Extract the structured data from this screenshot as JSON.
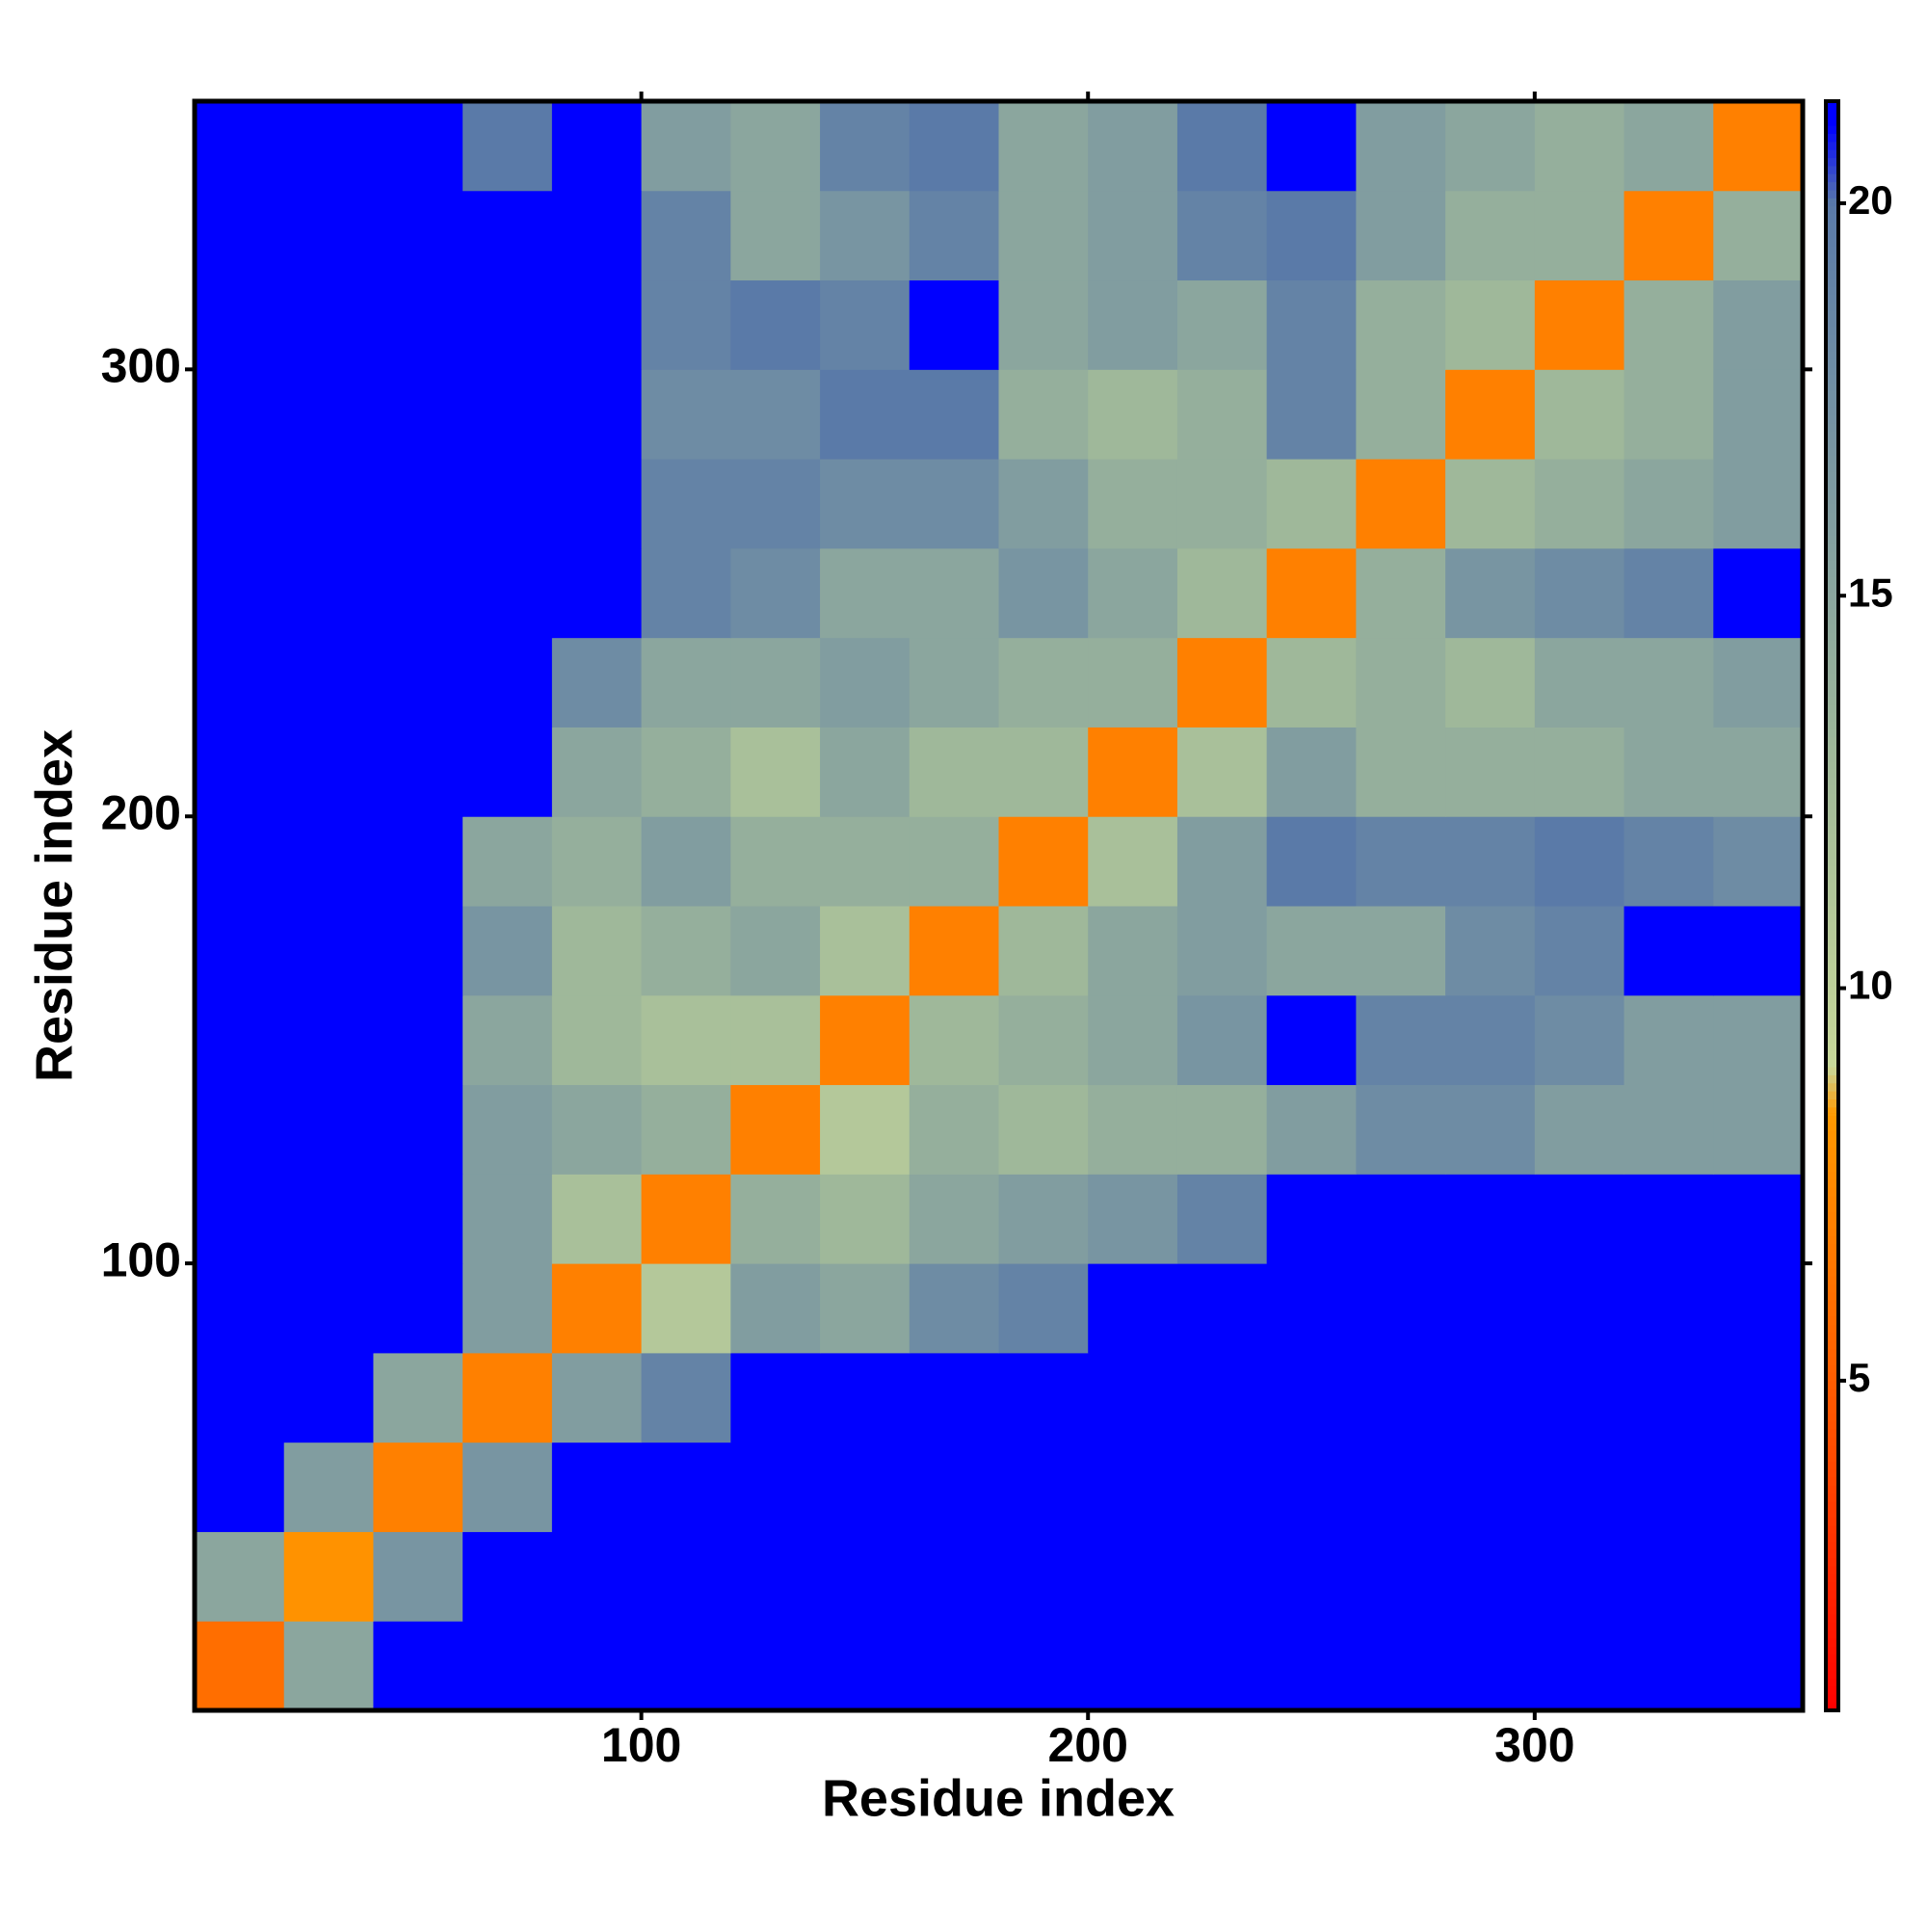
{
  "chart_data": {
    "type": "heatmap",
    "x_label": "Residue index",
    "y_label": "Residue index",
    "xbins": [
      0,
      20,
      40,
      60,
      80,
      100,
      120,
      140,
      160,
      180,
      200,
      220,
      240,
      260,
      280,
      300,
      320,
      340,
      360
    ],
    "ybins": [
      0,
      20,
      40,
      60,
      80,
      100,
      120,
      140,
      160,
      180,
      200,
      220,
      240,
      260,
      280,
      300,
      320,
      340,
      360
    ],
    "xlim": [
      0,
      360
    ],
    "ylim": [
      0,
      360
    ],
    "xticks": [
      100,
      200,
      300
    ],
    "yticks": [
      100,
      200,
      300
    ],
    "zlim": [
      0.8,
      21.3
    ],
    "zticks": [
      5,
      10,
      15,
      20
    ],
    "colorscale": [
      [
        0.8,
        "#ff0000"
      ],
      [
        4,
        "#ff4a00"
      ],
      [
        8.4,
        "#ff9900"
      ],
      [
        9,
        "#c8d89a"
      ],
      [
        13,
        "#9fb89a"
      ],
      [
        20,
        "#5a7aa8"
      ],
      [
        21,
        "#0000ff"
      ]
    ],
    "z": [
      [
        6,
        15,
        21,
        21,
        21,
        21,
        21,
        21,
        21,
        21,
        21,
        21,
        21,
        21,
        21,
        21,
        21,
        21
      ],
      [
        15,
        8,
        17,
        21,
        21,
        21,
        21,
        21,
        21,
        21,
        21,
        21,
        21,
        21,
        21,
        21,
        21,
        21
      ],
      [
        21,
        16,
        7,
        17,
        21,
        21,
        21,
        21,
        21,
        21,
        21,
        21,
        21,
        21,
        21,
        21,
        21,
        21
      ],
      [
        21,
        21,
        15,
        7,
        16,
        19,
        21,
        21,
        21,
        21,
        21,
        21,
        21,
        21,
        21,
        21,
        21,
        21
      ],
      [
        21,
        21,
        21,
        16,
        7,
        11,
        16,
        15,
        18,
        19,
        21,
        21,
        21,
        21,
        21,
        21,
        21,
        21
      ],
      [
        21,
        21,
        21,
        16,
        12,
        7,
        14,
        13,
        15,
        16,
        17,
        19,
        21,
        21,
        21,
        21,
        21,
        21
      ],
      [
        21,
        21,
        21,
        16,
        15,
        14,
        7,
        11,
        14,
        13,
        14,
        14,
        16,
        18,
        18,
        16,
        16,
        16
      ],
      [
        21,
        21,
        21,
        15,
        13,
        12,
        12,
        7,
        13,
        14,
        15,
        17,
        21,
        19,
        19,
        18,
        16,
        16
      ],
      [
        21,
        21,
        21,
        17,
        13,
        14,
        15,
        12,
        7,
        13,
        15,
        16,
        15,
        15,
        18,
        19,
        21,
        21
      ],
      [
        21,
        21,
        21,
        15,
        14,
        16,
        14,
        14,
        14,
        7,
        12,
        16,
        20,
        19,
        19,
        20,
        19,
        18
      ],
      [
        21,
        21,
        21,
        21,
        15,
        14,
        12,
        15,
        13,
        13,
        7,
        12,
        16,
        14,
        14,
        14,
        15,
        15
      ],
      [
        21,
        21,
        21,
        21,
        18,
        15,
        15,
        16,
        15,
        14,
        14,
        7,
        13,
        14,
        13,
        15,
        15,
        16
      ],
      [
        21,
        21,
        21,
        21,
        21,
        19,
        18,
        15,
        15,
        17,
        15,
        13,
        7,
        14,
        17,
        18,
        19,
        21
      ],
      [
        21,
        21,
        21,
        21,
        21,
        19,
        19,
        18,
        18,
        16,
        14,
        14,
        13,
        7,
        13,
        14,
        15,
        16
      ],
      [
        21,
        21,
        21,
        21,
        21,
        18,
        18,
        20,
        20,
        14,
        13,
        14,
        19,
        14,
        7,
        13,
        14,
        16
      ],
      [
        21,
        21,
        21,
        21,
        21,
        19,
        20,
        19,
        21,
        15,
        16,
        15,
        19,
        14,
        13,
        7,
        14,
        16
      ],
      [
        21,
        21,
        21,
        21,
        21,
        19,
        15,
        17,
        19,
        15,
        16,
        19,
        20,
        16,
        14,
        14,
        7,
        14
      ],
      [
        21,
        21,
        21,
        20,
        21,
        16,
        15,
        19,
        20,
        15,
        16,
        20,
        21,
        16,
        15,
        14,
        15,
        7
      ]
    ]
  }
}
